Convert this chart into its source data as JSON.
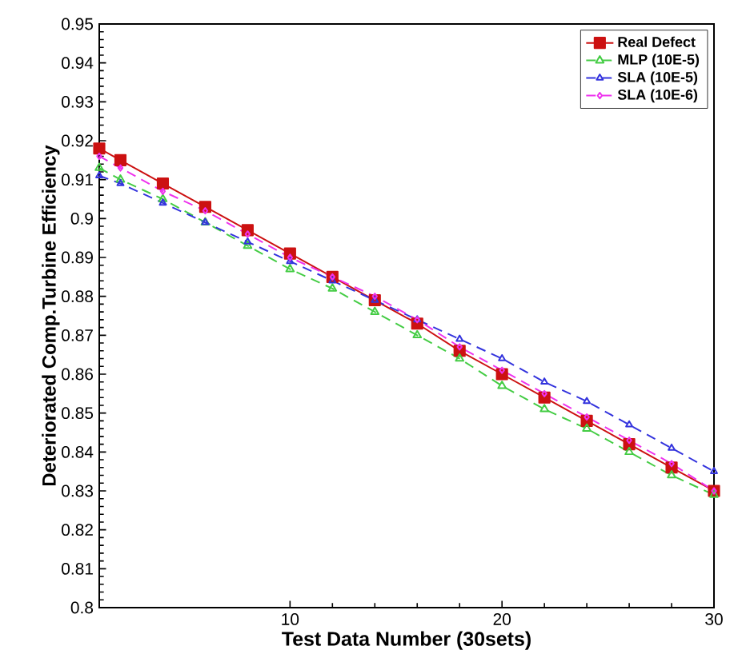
{
  "chart_data": {
    "type": "line",
    "xlabel": "Test Data Number (30sets)",
    "ylabel": "Deteriorated Comp.Turbine Efficiency",
    "x": [
      1,
      2,
      4,
      6,
      8,
      10,
      12,
      14,
      16,
      18,
      20,
      22,
      24,
      26,
      28,
      30
    ],
    "series": [
      {
        "name": "Real Defect",
        "color": "#cc1111",
        "marker": "square",
        "line_style": "solid",
        "values": [
          0.918,
          0.915,
          0.909,
          0.903,
          0.897,
          0.891,
          0.885,
          0.879,
          0.873,
          0.866,
          0.86,
          0.854,
          0.848,
          0.842,
          0.836,
          0.83
        ]
      },
      {
        "name": "MLP (10E-5)",
        "color": "#44cc44",
        "marker": "triangle",
        "line_style": "dashed",
        "values": [
          0.913,
          0.91,
          0.905,
          0.899,
          0.893,
          0.887,
          0.882,
          0.876,
          0.87,
          0.864,
          0.857,
          0.851,
          0.846,
          0.84,
          0.834,
          0.829
        ]
      },
      {
        "name": "SLA (10E-5)",
        "color": "#3333dd",
        "marker": "triangle",
        "line_style": "dashed",
        "values": [
          0.911,
          0.909,
          0.904,
          0.899,
          0.894,
          0.889,
          0.884,
          0.879,
          0.874,
          0.869,
          0.864,
          0.858,
          0.853,
          0.847,
          0.841,
          0.835
        ]
      },
      {
        "name": "SLA (10E-6)",
        "color": "#ee33ee",
        "marker": "diamond",
        "line_style": "dashed",
        "values": [
          0.916,
          0.913,
          0.907,
          0.902,
          0.896,
          0.89,
          0.885,
          0.88,
          0.874,
          0.867,
          0.861,
          0.855,
          0.849,
          0.843,
          0.837,
          0.83
        ]
      }
    ],
    "xlim": [
      1,
      30
    ],
    "xticks": [
      10,
      20,
      30
    ],
    "ylim": [
      0.8,
      0.95
    ],
    "yticks": [
      0.8,
      0.81,
      0.82,
      0.83,
      0.84,
      0.85,
      0.86,
      0.87,
      0.88,
      0.89,
      0.9,
      0.91,
      0.92,
      0.93,
      0.94,
      0.95
    ],
    "grid": false,
    "legend": "top right"
  }
}
